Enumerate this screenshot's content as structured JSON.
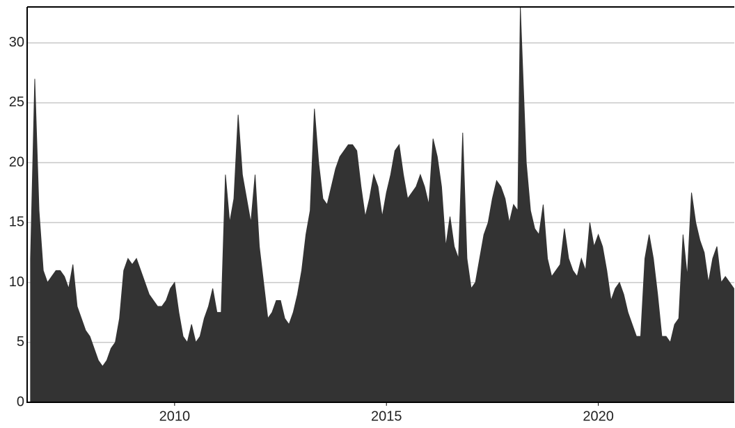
{
  "chart_data": {
    "type": "area",
    "color": "#333333",
    "grid": true,
    "gridcolor": "#c8c8c8",
    "xlim": [
      2006.52,
      2023.21
    ],
    "xticks": [
      2010,
      2015,
      2020
    ],
    "ylim": [
      0,
      33
    ],
    "yticks": [
      0,
      5,
      10,
      15,
      20,
      25,
      30
    ],
    "x": [
      2006.6,
      2006.7,
      2006.8,
      2006.9,
      2007.0,
      2007.1,
      2007.2,
      2007.3,
      2007.4,
      2007.5,
      2007.6,
      2007.7,
      2007.8,
      2007.9,
      2008.0,
      2008.1,
      2008.2,
      2008.3,
      2008.4,
      2008.5,
      2008.6,
      2008.7,
      2008.8,
      2008.9,
      2009.0,
      2009.1,
      2009.2,
      2009.3,
      2009.4,
      2009.5,
      2009.6,
      2009.7,
      2009.8,
      2009.9,
      2010.0,
      2010.1,
      2010.2,
      2010.3,
      2010.4,
      2010.5,
      2010.6,
      2010.7,
      2010.8,
      2010.9,
      2011.0,
      2011.1,
      2011.2,
      2011.3,
      2011.4,
      2011.5,
      2011.6,
      2011.7,
      2011.8,
      2011.9,
      2012.0,
      2012.1,
      2012.2,
      2012.3,
      2012.4,
      2012.5,
      2012.6,
      2012.7,
      2012.8,
      2012.9,
      2013.0,
      2013.1,
      2013.2,
      2013.3,
      2013.4,
      2013.5,
      2013.6,
      2013.7,
      2013.8,
      2013.9,
      2014.0,
      2014.1,
      2014.2,
      2014.3,
      2014.4,
      2014.5,
      2014.6,
      2014.7,
      2014.8,
      2014.9,
      2015.0,
      2015.1,
      2015.2,
      2015.3,
      2015.4,
      2015.5,
      2015.6,
      2015.7,
      2015.8,
      2015.9,
      2016.0,
      2016.1,
      2016.2,
      2016.3,
      2016.4,
      2016.5,
      2016.6,
      2016.7,
      2016.8,
      2016.9,
      2017.0,
      2017.1,
      2017.2,
      2017.3,
      2017.4,
      2017.5,
      2017.6,
      2017.7,
      2017.8,
      2017.9,
      2018.0,
      2018.1,
      2018.16,
      2018.3,
      2018.4,
      2018.5,
      2018.6,
      2018.7,
      2018.8,
      2018.9,
      2019.0,
      2019.1,
      2019.2,
      2019.3,
      2019.4,
      2019.5,
      2019.6,
      2019.7,
      2019.8,
      2019.9,
      2020.0,
      2020.1,
      2020.2,
      2020.3,
      2020.4,
      2020.5,
      2020.6,
      2020.7,
      2020.8,
      2020.9,
      2021.0,
      2021.1,
      2021.2,
      2021.3,
      2021.4,
      2021.5,
      2021.6,
      2021.7,
      2021.8,
      2021.9,
      2022.0,
      2022.1,
      2022.2,
      2022.3,
      2022.4,
      2022.5,
      2022.6,
      2022.7,
      2022.8,
      2022.9,
      2023.0,
      2023.1,
      2023.2
    ],
    "values": [
      12,
      27,
      16,
      11,
      10,
      10.5,
      11,
      11,
      10.5,
      9.5,
      11.5,
      8,
      7,
      6,
      5.5,
      4.5,
      3.5,
      3,
      3.5,
      4.5,
      5,
      7,
      11,
      12,
      11.5,
      12,
      11,
      10,
      9,
      8.5,
      8,
      8,
      8.5,
      9.5,
      10,
      7.5,
      5.5,
      5,
      6.5,
      5,
      5.5,
      7,
      8,
      9.5,
      7.5,
      7.5,
      19,
      15,
      17,
      24,
      19,
      17,
      15,
      19,
      13,
      10,
      7,
      7.5,
      8.5,
      8.5,
      7,
      6.5,
      7.5,
      9,
      11,
      14,
      16,
      24.5,
      20,
      17,
      16.5,
      18,
      19.5,
      20.5,
      21,
      21.5,
      21.5,
      21,
      18,
      15.5,
      17,
      19,
      18,
      15.5,
      17.5,
      19,
      21,
      21.5,
      19,
      17,
      17.5,
      18,
      19,
      18,
      16.5,
      22,
      20.5,
      18,
      13,
      15.5,
      13,
      12,
      22.5,
      12,
      9.5,
      10,
      12,
      14,
      15,
      17,
      18.5,
      18,
      17,
      15,
      16.5,
      16,
      33,
      20,
      16,
      14.5,
      14,
      16.5,
      12,
      10.5,
      11,
      11.5,
      14.5,
      12,
      11,
      10.5,
      12,
      11,
      15,
      13,
      14,
      13,
      11,
      8.5,
      9.5,
      10,
      9,
      7.5,
      6.5,
      5.5,
      5.5,
      12,
      14,
      12,
      9,
      5.5,
      5.5,
      5,
      6.5,
      7,
      14,
      10.5,
      17.5,
      15,
      13.5,
      12.5,
      10,
      12,
      13,
      10,
      10.5,
      10,
      9.5
    ]
  }
}
